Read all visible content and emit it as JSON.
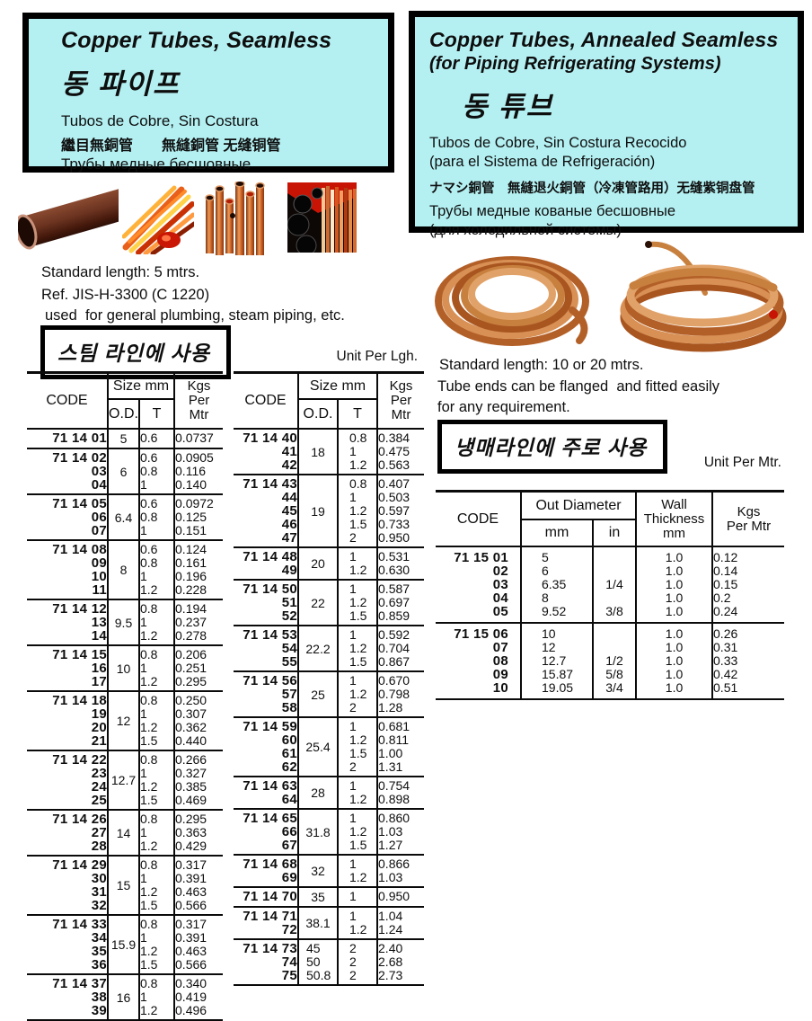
{
  "colors": {
    "cyan": "#b4f0f2",
    "line": "#0a0a0a",
    "copper": "#c07a40"
  },
  "left": {
    "header": {
      "title": "Copper Tubes, Seamless",
      "korean": "동 파이프",
      "spanish": "Tubos de Cobre, Sin Costura",
      "cjk": "繼目無銅管　　無縫銅管 无缝铜管",
      "russian": "Трубы медные бесшовные"
    },
    "std_length": "Standard length: 5 mtrs.",
    "ref": "Ref. JIS-H-3300 (C 1220)",
    "usage": "used  for general plumbing, steam piping, etc.",
    "usage_box": "스팀 라인에 사용",
    "unit": "Unit Per Lgh."
  },
  "right": {
    "header": {
      "title": "Copper Tubes, Annealed Seamless",
      "subtitle": "(for Piping Refrigerating Systems)",
      "korean": "동 튜브",
      "spanish1": "Tubos de Cobre, Sin Costura Recocido",
      "spanish2": "(para el Sistema de Refrigeración)",
      "cjk": "ナマシ銅管　無縫退火銅管（冷凍管路用）无缝紫铜盘管",
      "russian1": "Трубы медные кованые бесшовные",
      "russian2": "(для холодильной системы)"
    },
    "std_length": "Standard length: 10 or 20 mtrs.",
    "note1": "Tube ends can be flanged  and fitted easily",
    "note2": "for any requirement.",
    "usage_box": "냉매라인에 주로 사용",
    "unit": "Unit Per Mtr."
  },
  "table1": {
    "headers": {
      "code": "CODE",
      "size": "Size mm",
      "od": "O.D.",
      "t": "T",
      "kgs": "Kgs\nPer\nMtr"
    },
    "code_prefix": "71 14",
    "groups": [
      {
        "codes": [
          "01"
        ],
        "od": [
          "5"
        ],
        "t": [
          "0.6"
        ],
        "kgs": [
          "0.0737"
        ]
      },
      {
        "codes": [
          "02",
          "03",
          "04"
        ],
        "od": [
          "6"
        ],
        "t": [
          "0.6",
          "0.8",
          "1"
        ],
        "kgs": [
          "0.0905",
          "0.116",
          "0.140"
        ]
      },
      {
        "codes": [
          "05",
          "06",
          "07"
        ],
        "od": [
          "6.4"
        ],
        "t": [
          "0.6",
          "0.8",
          "1"
        ],
        "kgs": [
          "0.0972",
          "0.125",
          "0.151"
        ]
      },
      {
        "codes": [
          "08",
          "09",
          "10",
          "11"
        ],
        "od": [
          "8"
        ],
        "t": [
          "0.6",
          "0.8",
          "1",
          "1.2"
        ],
        "kgs": [
          "0.124",
          "0.161",
          "0.196",
          "0.228"
        ]
      },
      {
        "codes": [
          "12",
          "13",
          "14"
        ],
        "od": [
          "9.5"
        ],
        "t": [
          "0.8",
          "1",
          "1.2"
        ],
        "kgs": [
          "0.194",
          "0.237",
          "0.278"
        ]
      },
      {
        "codes": [
          "15",
          "16",
          "17"
        ],
        "od": [
          "10"
        ],
        "t": [
          "0.8",
          "1",
          "1.2"
        ],
        "kgs": [
          "0.206",
          "0.251",
          "0.295"
        ]
      },
      {
        "codes": [
          "18",
          "19",
          "20",
          "21"
        ],
        "od": [
          "12"
        ],
        "t": [
          "0.8",
          "1",
          "1.2",
          "1.5"
        ],
        "kgs": [
          "0.250",
          "0.307",
          "0.362",
          "0.440"
        ]
      },
      {
        "codes": [
          "22",
          "23",
          "24",
          "25"
        ],
        "od": [
          "12.7"
        ],
        "t": [
          "0.8",
          "1",
          "1.2",
          "1.5"
        ],
        "kgs": [
          "0.266",
          "0.327",
          "0.385",
          "0.469"
        ]
      },
      {
        "codes": [
          "26",
          "27",
          "28"
        ],
        "od": [
          "14"
        ],
        "t": [
          "0.8",
          "1",
          "1.2"
        ],
        "kgs": [
          "0.295",
          "0.363",
          "0.429"
        ]
      },
      {
        "codes": [
          "29",
          "30",
          "31",
          "32"
        ],
        "od": [
          "15"
        ],
        "t": [
          "0.8",
          "1",
          "1.2",
          "1.5"
        ],
        "kgs": [
          "0.317",
          "0.391",
          "0.463",
          "0.566"
        ]
      },
      {
        "codes": [
          "33",
          "34",
          "35",
          "36"
        ],
        "od": [
          "15.9"
        ],
        "t": [
          "0.8",
          "1",
          "1.2",
          "1.5"
        ],
        "kgs": [
          "0.317",
          "0.391",
          "0.463",
          "0.566"
        ]
      },
      {
        "codes": [
          "37",
          "38",
          "39"
        ],
        "od": [
          "16"
        ],
        "t": [
          "0.8",
          "1",
          "1.2"
        ],
        "kgs": [
          "0.340",
          "0.419",
          "0.496"
        ]
      }
    ]
  },
  "table2": {
    "headers": {
      "code": "CODE",
      "size": "Size mm",
      "od": "O.D.",
      "t": "T",
      "kgs": "Kgs\nPer\nMtr"
    },
    "code_prefix": "71 14",
    "groups": [
      {
        "codes": [
          "40",
          "41",
          "42"
        ],
        "od": [
          "18"
        ],
        "t": [
          "0.8",
          "1",
          "1.2"
        ],
        "kgs": [
          "0.384",
          "0.475",
          "0.563"
        ]
      },
      {
        "codes": [
          "43",
          "44",
          "45",
          "46",
          "47"
        ],
        "od": [
          "19"
        ],
        "t": [
          "0.8",
          "1",
          "1.2",
          "1.5",
          "2"
        ],
        "kgs": [
          "0.407",
          "0.503",
          "0.597",
          "0.733",
          "0.950"
        ]
      },
      {
        "codes": [
          "48",
          "49"
        ],
        "od": [
          "20"
        ],
        "t": [
          "1",
          "1.2"
        ],
        "kgs": [
          "0.531",
          "0.630"
        ]
      },
      {
        "codes": [
          "50",
          "51",
          "52"
        ],
        "od": [
          "22"
        ],
        "t": [
          "1",
          "1.2",
          "1.5"
        ],
        "kgs": [
          "0.587",
          "0.697",
          "0.859"
        ]
      },
      {
        "codes": [
          "53",
          "54",
          "55"
        ],
        "od": [
          "22.2"
        ],
        "t": [
          "1",
          "1.2",
          "1.5"
        ],
        "kgs": [
          "0.592",
          "0.704",
          "0.867"
        ]
      },
      {
        "codes": [
          "56",
          "57",
          "58"
        ],
        "od": [
          "25"
        ],
        "t": [
          "1",
          "1.2",
          "2"
        ],
        "kgs": [
          "0.670",
          "0.798",
          "1.28"
        ]
      },
      {
        "codes": [
          "59",
          "60",
          "61",
          "62"
        ],
        "od": [
          "25.4"
        ],
        "t": [
          "1",
          "1.2",
          "1.5",
          "2"
        ],
        "kgs": [
          "0.681",
          "0.811",
          "1.00",
          "1.31"
        ]
      },
      {
        "codes": [
          "63",
          "64"
        ],
        "od": [
          "28"
        ],
        "t": [
          "1",
          "1.2"
        ],
        "kgs": [
          "0.754",
          "0.898"
        ]
      },
      {
        "codes": [
          "65",
          "66",
          "67"
        ],
        "od": [
          "31.8"
        ],
        "t": [
          "1",
          "1.2",
          "1.5"
        ],
        "kgs": [
          "0.860",
          "1.03",
          "1.27"
        ]
      },
      {
        "codes": [
          "68",
          "69"
        ],
        "od": [
          "32"
        ],
        "t": [
          "1",
          "1.2"
        ],
        "kgs": [
          "0.866",
          "1.03"
        ]
      },
      {
        "codes": [
          "70"
        ],
        "od": [
          "35"
        ],
        "t": [
          "1"
        ],
        "kgs": [
          "0.950"
        ]
      },
      {
        "codes": [
          "71",
          "72"
        ],
        "od": [
          "38.1"
        ],
        "t": [
          "1",
          "1.2"
        ],
        "kgs": [
          "1.04",
          "1.24"
        ]
      },
      {
        "codes": [
          "73",
          "74",
          "75"
        ],
        "od": [
          "45",
          "50",
          "50.8"
        ],
        "t": [
          "2",
          "2",
          "2"
        ],
        "kgs": [
          "2.40",
          "2.68",
          "2.73"
        ]
      }
    ]
  },
  "table3": {
    "headers": {
      "code": "CODE",
      "out": "Out Diameter",
      "mm": "mm",
      "in": "in",
      "wall": "Wall\nThickness\nmm",
      "kgs": "Kgs\nPer Mtr"
    },
    "code_prefix": "71 15",
    "groups": [
      {
        "codes": [
          "01",
          "02",
          "03",
          "04",
          "05"
        ],
        "mm": [
          "5",
          "6",
          "6.35",
          "8",
          "9.52"
        ],
        "in": [
          "",
          "",
          "1/4",
          "",
          "3/8"
        ],
        "wall": [
          "1.0",
          "1.0",
          "1.0",
          "1.0",
          "1.0"
        ],
        "kgs": [
          "0.12",
          "0.14",
          "0.15",
          "0.2",
          "0.24"
        ]
      },
      {
        "codes": [
          "06",
          "07",
          "08",
          "09",
          "10"
        ],
        "mm": [
          "10",
          "12",
          "12.7",
          "15.87",
          "19.05"
        ],
        "in": [
          "",
          "",
          "1/2",
          "5/8",
          "3/4"
        ],
        "wall": [
          "1.0",
          "1.0",
          "1.0",
          "1.0",
          "1.0"
        ],
        "kgs": [
          "0.26",
          "0.31",
          "0.33",
          "0.42",
          "0.51"
        ]
      }
    ]
  }
}
